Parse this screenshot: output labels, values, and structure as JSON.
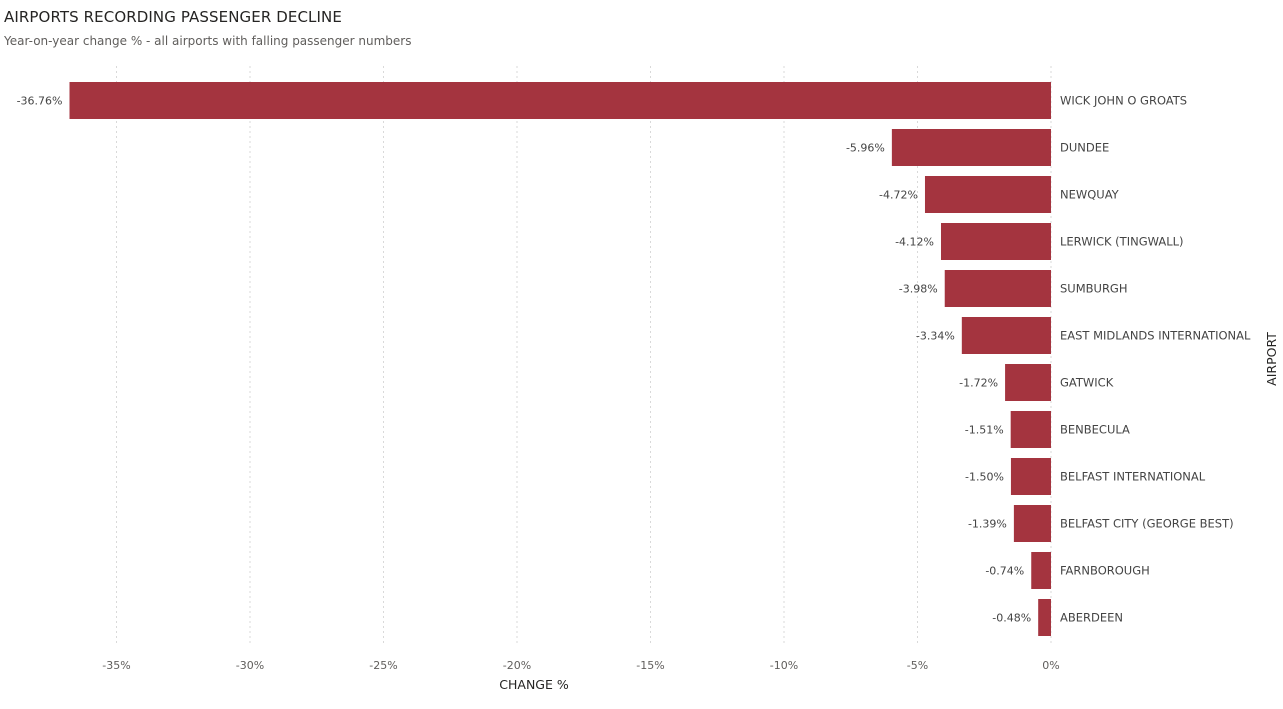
{
  "header": {
    "title": "AIRPORTS RECORDING PASSENGER DECLINE",
    "subtitle": "Year-on-year change % - all airports with falling passenger numbers"
  },
  "colors": {
    "bar": "#a4343f",
    "grid": "#d9d9d9"
  },
  "chart_data": {
    "type": "bar",
    "orientation": "horizontal",
    "title": "AIRPORTS RECORDING PASSENGER DECLINE",
    "subtitle": "Year-on-year change % - all airports with falling passenger numbers",
    "xlabel": "CHANGE %",
    "ylabel": "AIRPORT",
    "categories": [
      "WICK JOHN O GROATS",
      "DUNDEE",
      "NEWQUAY",
      "LERWICK (TINGWALL)",
      "SUMBURGH",
      "EAST MIDLANDS INTERNATIONAL",
      "GATWICK",
      "BENBECULA",
      "BELFAST INTERNATIONAL",
      "BELFAST CITY (GEORGE BEST)",
      "FARNBOROUGH",
      "ABERDEEN"
    ],
    "values": [
      -36.76,
      -5.96,
      -4.72,
      -4.12,
      -3.98,
      -3.34,
      -1.72,
      -1.51,
      -1.5,
      -1.39,
      -0.74,
      -0.48
    ],
    "data_labels": [
      "-36.76%",
      "-5.96%",
      "-4.72%",
      "-4.12%",
      "-3.98%",
      "-3.34%",
      "-1.72%",
      "-1.51%",
      "-1.50%",
      "-1.39%",
      "-0.74%",
      "-0.48%"
    ],
    "ticks": [
      -35,
      -30,
      -25,
      -20,
      -15,
      -10,
      -5,
      0
    ],
    "tick_labels": [
      "-35%",
      "-30%",
      "-25%",
      "-20%",
      "-15%",
      "-10%",
      "-5%",
      "0%"
    ],
    "xlim": [
      -37,
      0
    ],
    "grid": true,
    "category_labels_position": "right"
  }
}
